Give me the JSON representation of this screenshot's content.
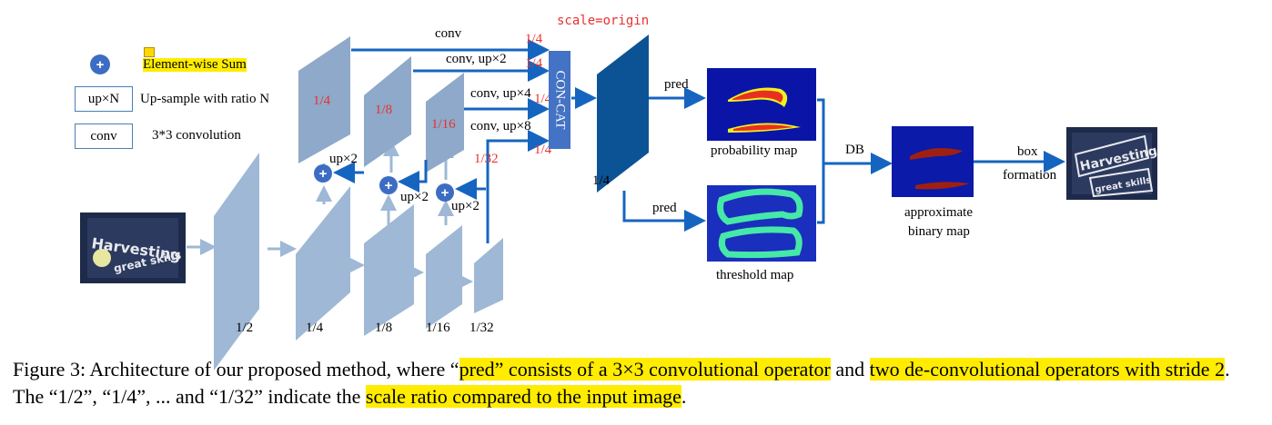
{
  "legend": {
    "sum_label": "Element-wise Sum",
    "upsample_box": "up×N",
    "upsample_label": "Up-sample with ratio N",
    "conv_box": "conv",
    "conv_label": "3*3 convolution",
    "plus_symbol": "+"
  },
  "backbone_scales": [
    "1/2",
    "1/4",
    "1/8",
    "1/16",
    "1/32"
  ],
  "fpn_scales": [
    "1/4",
    "1/8",
    "1/16",
    "1/32"
  ],
  "up_labels": [
    "up×2",
    "up×2",
    "up×2"
  ],
  "branch_labels": [
    "conv",
    "conv, up×2",
    "conv, up×4",
    "conv, up×8"
  ],
  "branch_ratio": [
    "1/4",
    "1/4",
    "1/4",
    "1/4"
  ],
  "scale_note": "scale=origin",
  "concat_label": "CON-CAT",
  "feature_scale": "1/4",
  "pred_labels": [
    "pred",
    "pred"
  ],
  "map_labels": {
    "probability": "probability map",
    "threshold": "threshold map",
    "approx": "approximate",
    "approx2": "binary map"
  },
  "db_label": "DB",
  "box_label": "box",
  "formation_label": "formation",
  "input_text": [
    "Harvesting",
    "great skills"
  ],
  "caption": {
    "p1": "Figure 3: Architecture of our proposed method, where “",
    "h1": "pred” consists of a 3×3 convolutional operator",
    "p2": " and ",
    "h2": "two de-convolutional operators with stride 2",
    "p3": ". The “1/2”, “1/4”, ... and “1/32” indicate the ",
    "h3": "scale ratio compared to the input image",
    "p4": "."
  },
  "colors": {
    "backbone": "#9eb8d6",
    "fpn": "#8ea9c9",
    "arrow": "#1565c0",
    "concat": "#4472c4",
    "highlight": "#ffec00",
    "scale_text": "#e8322e"
  }
}
